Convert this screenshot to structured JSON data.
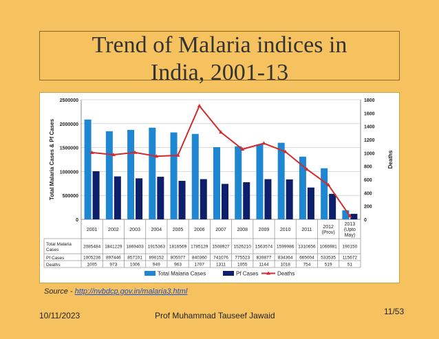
{
  "slide": {
    "title_line1": "Trend of Malaria indices in",
    "title_line2": "India, 2001-13",
    "source_prefix": "Source -",
    "source_link": "http://nvbdcp.gov.in/malaria3.html",
    "footer_date": "10/11/2023",
    "footer_author": "Prof Muhammad Tauseef Jawaid",
    "footer_page": "11/53"
  },
  "colors": {
    "background": "#f6c25f",
    "total_bar": "#1f86d2",
    "pf_bar": "#0d1f6a",
    "deaths_line": "#d12b2b"
  },
  "chart_data": {
    "type": "bar",
    "title": "",
    "xlabel": "",
    "ylabel": "Total Malaria Cases & Pf Cases",
    "y2label": "Deaths",
    "ylim": [
      0,
      2500000
    ],
    "y2lim": [
      0,
      1800
    ],
    "yticks": [
      "0",
      "500000",
      "1000000",
      "1500000",
      "2000000",
      "2500000"
    ],
    "y2ticks": [
      "0",
      "200",
      "400",
      "600",
      "800",
      "1000",
      "1200",
      "1400",
      "1600",
      "1800"
    ],
    "categories": [
      [
        "2001"
      ],
      [
        "2002"
      ],
      [
        "2003"
      ],
      [
        "2004"
      ],
      [
        "2005"
      ],
      [
        "2006"
      ],
      [
        "2007"
      ],
      [
        "2008"
      ],
      [
        "2009"
      ],
      [
        "2010"
      ],
      [
        "2011"
      ],
      [
        "2012",
        "(Prov)"
      ],
      [
        "2013",
        "(Upto",
        "May)"
      ]
    ],
    "grid": true,
    "legend_position": "bottom",
    "series": [
      {
        "name": "Total Malaria Cases",
        "table_label": [
          "Total Malaria",
          "Cases"
        ],
        "type": "bar",
        "values": [
          2085484,
          1841229,
          1869403,
          1915363,
          1816569,
          1785129,
          1508927,
          1526210,
          1563574,
          1599986,
          1310656,
          1066981,
          190150
        ],
        "labels": [
          "2085484",
          "1841229",
          "1869403",
          "1915363",
          "1816569",
          "1785129",
          "1508927",
          "1526210",
          "1563574",
          "1599986",
          "1310656",
          "1066981",
          "190150"
        ]
      },
      {
        "name": "Pf Cases",
        "table_label": [
          "Pf Cases"
        ],
        "type": "bar",
        "values": [
          1005236,
          897446,
          857101,
          890152,
          805077,
          840360,
          741076,
          775523,
          839877,
          834364,
          665004,
          533535,
          115672
        ],
        "labels": [
          "1005236",
          "897446",
          "857101",
          "890152",
          "805077",
          "840360",
          "741076",
          "775523",
          "839877",
          "834364",
          "665004",
          "533535",
          "115672"
        ]
      },
      {
        "name": "Deaths",
        "table_label": [
          "Deaths"
        ],
        "type": "line",
        "axis": "right",
        "values": [
          1005,
          973,
          1006,
          949,
          963,
          1707,
          1311,
          1055,
          1144,
          1018,
          754,
          519,
          51
        ],
        "labels": [
          "1005",
          "973",
          "1006",
          "949",
          "963",
          "1707",
          "1311",
          "1055",
          "1144",
          "1018",
          "754",
          "519",
          "51"
        ]
      }
    ]
  }
}
